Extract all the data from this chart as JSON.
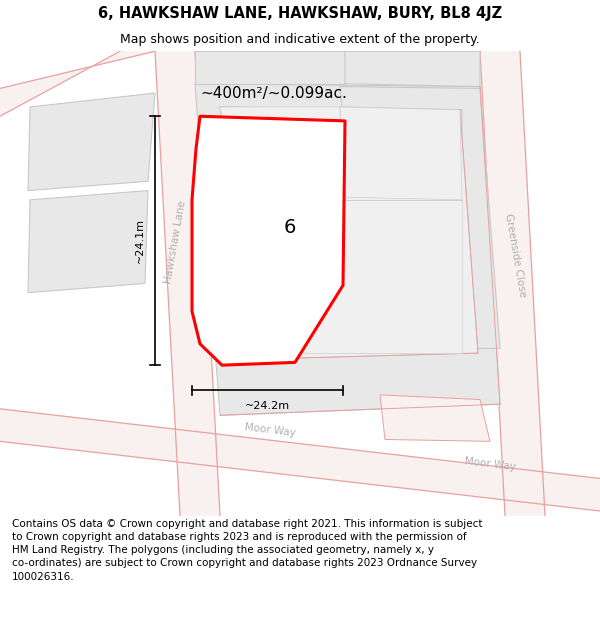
{
  "title": "6, HAWKSHAW LANE, HAWKSHAW, BURY, BL8 4JZ",
  "subtitle": "Map shows position and indicative extent of the property.",
  "footer": "Contains OS data © Crown copyright and database right 2021. This information is subject to Crown copyright and database rights 2023 and is reproduced with the permission of HM Land Registry. The polygons (including the associated geometry, namely x, y co-ordinates) are subject to Crown copyright and database rights 2023 Ordnance Survey 100026316.",
  "title_fontsize": 10.5,
  "subtitle_fontsize": 9,
  "footer_fontsize": 7.5,
  "road_line_color": "#e8a0a0",
  "building_fill": "#e8e8e8",
  "building_edge": "#c8c8c8",
  "road_fill": "#f9f0f0",
  "highlight_fill": "#ffffff",
  "highlight_edge": "#ff0000",
  "highlight_lw": 2.2,
  "area_text": "~400m²/~0.099ac.",
  "label_text": "6",
  "dim_h_text": "~24.1m",
  "dim_w_text": "~24.2m",
  "street_hawkshaw": "Hawkshaw Lane",
  "street_moor1": "Moor Way",
  "street_moor2": "Moor Way",
  "street_greenside": "Greenside Close",
  "street_color": "#b0b0b0"
}
